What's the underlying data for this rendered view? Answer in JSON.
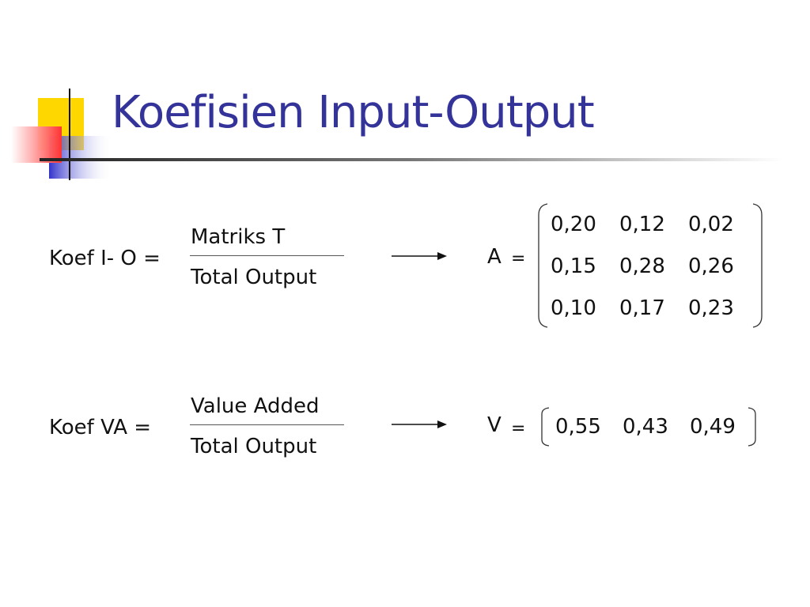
{
  "slide": {
    "title": "Koefisien Input-Output",
    "colors": {
      "title": "#333399",
      "yellow": "#FFD700",
      "blue": "#3333CC",
      "red": "#FF3333"
    }
  },
  "formulas": [
    {
      "lhs": "Koef I- O =",
      "numerator": "Matriks T",
      "denominator": "Total Output",
      "result_symbol": "A",
      "equals": "="
    },
    {
      "lhs": "Koef VA =",
      "numerator": "Value Added",
      "denominator": "Total Output",
      "result_symbol": "V",
      "equals": "="
    }
  ],
  "matrix_A": [
    [
      "0,20",
      "0,12",
      "0,02"
    ],
    [
      "0,15",
      "0,28",
      "0,26"
    ],
    [
      "0,10",
      "0,17",
      "0,23"
    ]
  ],
  "vector_V": [
    "0,55",
    "0,43",
    "0,49"
  ]
}
